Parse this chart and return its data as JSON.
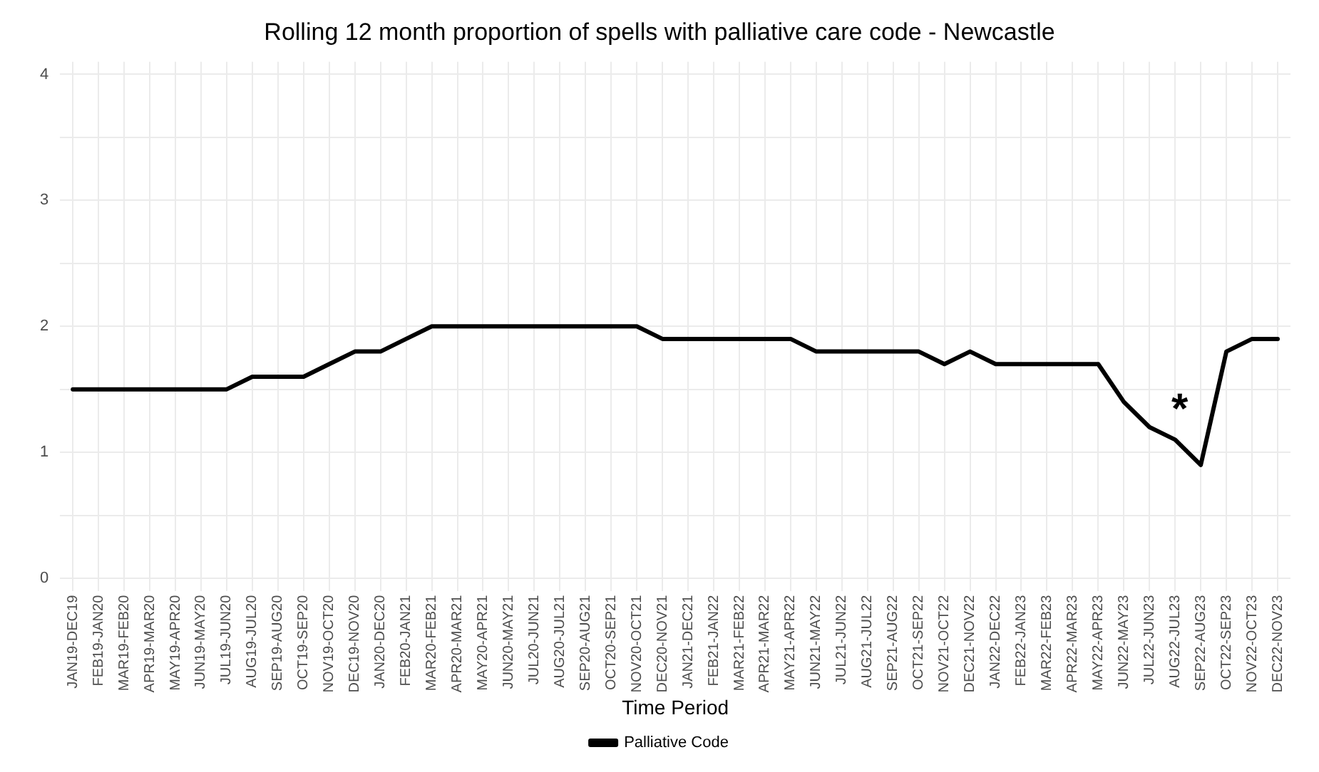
{
  "chart_data": {
    "type": "line",
    "title": "Rolling 12 month proportion of spells with palliative care code - Newcastle",
    "xlabel": "Time Period",
    "categories": [
      "JAN19-DEC19",
      "FEB19-JAN20",
      "MAR19-FEB20",
      "APR19-MAR20",
      "MAY19-APR20",
      "JUN19-MAY20",
      "JUL19-JUN20",
      "AUG19-JUL20",
      "SEP19-AUG20",
      "OCT19-SEP20",
      "NOV19-OCT20",
      "DEC19-NOV20",
      "JAN20-DEC20",
      "FEB20-JAN21",
      "MAR20-FEB21",
      "APR20-MAR21",
      "MAY20-APR21",
      "JUN20-MAY21",
      "JUL20-JUN21",
      "AUG20-JUL21",
      "SEP20-AUG21",
      "OCT20-SEP21",
      "NOV20-OCT21",
      "DEC20-NOV21",
      "JAN21-DEC21",
      "FEB21-JAN22",
      "MAR21-FEB22",
      "APR21-MAR22",
      "MAY21-APR22",
      "JUN21-MAY22",
      "JUL21-JUN22",
      "AUG21-JUL22",
      "SEP21-AUG22",
      "OCT21-SEP22",
      "NOV21-OCT22",
      "DEC21-NOV22",
      "JAN22-DEC22",
      "FEB22-JAN23",
      "MAR22-FEB23",
      "APR22-MAR23",
      "MAY22-APR23",
      "JUN22-MAY23",
      "JUL22-JUN23",
      "AUG22-JUL23",
      "SEP22-AUG23",
      "OCT22-SEP23",
      "NOV22-OCT23",
      "DEC22-NOV23"
    ],
    "series": [
      {
        "name": "Palliative Code",
        "color": "#000000",
        "values": [
          1.5,
          1.5,
          1.5,
          1.5,
          1.5,
          1.5,
          1.5,
          1.6,
          1.6,
          1.6,
          1.7,
          1.8,
          1.8,
          1.9,
          2.0,
          2.0,
          2.0,
          2.0,
          2.0,
          2.0,
          2.0,
          2.0,
          2.0,
          1.9,
          1.9,
          1.9,
          1.9,
          1.9,
          1.9,
          1.8,
          1.8,
          1.8,
          1.8,
          1.8,
          1.7,
          1.8,
          1.7,
          1.7,
          1.7,
          1.7,
          1.7,
          1.4,
          1.2,
          1.1,
          0.9,
          1.8,
          1.9,
          1.9
        ]
      }
    ],
    "ylim": [
      -0.1,
      4.1
    ],
    "yticks": [
      0,
      {
        "value": 0.5,
        "label": null
      },
      1,
      {
        "value": 1.5,
        "label": null
      },
      2,
      {
        "value": 2.5,
        "label": null
      },
      3,
      {
        "value": 3.5,
        "label": null
      },
      4
    ],
    "grid": true,
    "legend": "bottom",
    "marker": "none",
    "line_style": "solid",
    "annotations": [
      "*"
    ]
  }
}
